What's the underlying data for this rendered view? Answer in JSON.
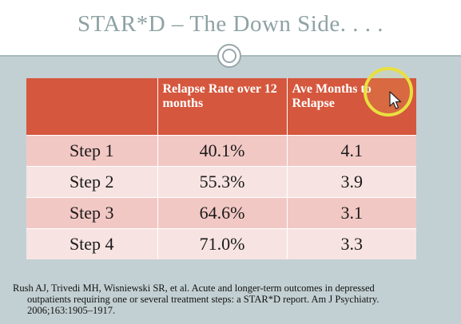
{
  "slide": {
    "title": "STAR*D – The Down Side. . . ."
  },
  "table": {
    "headers": [
      "",
      "Relapse Rate over 12 months",
      "Ave Months to Relapse"
    ],
    "rows": [
      [
        "Step 1",
        "40.1%",
        "4.1"
      ],
      [
        "Step 2",
        "55.3%",
        "3.9"
      ],
      [
        "Step 3",
        "64.6%",
        "3.1"
      ],
      [
        "Step 4",
        "71.0%",
        "3.3"
      ]
    ]
  },
  "citation": {
    "line1": "Rush AJ, Trivedi MH, Wisniewski SR, et al. Acute and longer-term outcomes in depressed",
    "line2": "outpatients requiring one or several treatment steps: a STAR*D report. Am J Psychiatry.",
    "line3": "2006;163:1905–1917."
  },
  "colors": {
    "header_fill": "#d5573d",
    "row_odd": "#f2c8c4",
    "row_even": "#f7e4e2",
    "title_text": "#8ea2a3",
    "background": "#c3d0d3",
    "cursor_highlight": "#e8e040"
  },
  "icons": {
    "ornament": "circle-ornament-icon",
    "cursor": "mouse-pointer-icon"
  }
}
